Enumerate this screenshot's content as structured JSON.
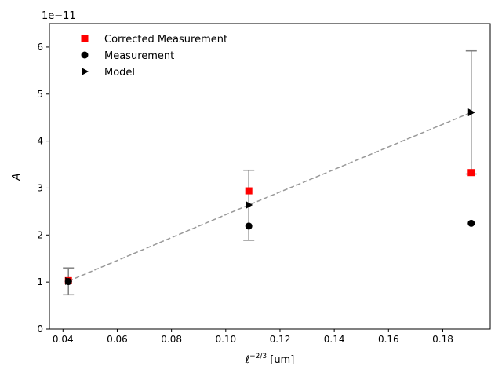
{
  "chart_data": {
    "type": "scatter",
    "title": "",
    "xlabel_main": "ℓ",
    "xlabel_sup": "−2/3",
    "xlabel_unit": " [um]",
    "ylabel": "A",
    "offset_text": "1e−11",
    "xlim": [
      0.035,
      0.1975
    ],
    "ylim": [
      0,
      6.5e-11
    ],
    "x_ticks": [
      0.04,
      0.06,
      0.08,
      0.1,
      0.12,
      0.14,
      0.16,
      0.18
    ],
    "x_tick_labels": [
      "0.04",
      "0.06",
      "0.08",
      "0.10",
      "0.12",
      "0.14",
      "0.16",
      "0.18"
    ],
    "y_ticks": [
      0,
      1e-11,
      2e-11,
      3e-11,
      4e-11,
      5e-11,
      6e-11
    ],
    "y_tick_labels": [
      "0",
      "1",
      "2",
      "3",
      "4",
      "5",
      "6"
    ],
    "grid": false,
    "legend_position": "top-left",
    "series": [
      {
        "name": "Corrected Measurement",
        "marker": "square",
        "color": "#ff0000",
        "x": [
          0.042,
          0.1085,
          0.1905
        ],
        "y": [
          1.03e-11,
          2.94e-11,
          3.33e-11
        ]
      },
      {
        "name": "Measurement",
        "marker": "circle",
        "color": "#000000",
        "x": [
          0.042,
          0.1085,
          0.1905
        ],
        "y": [
          1.01e-11,
          2.19e-11,
          2.25e-11
        ]
      },
      {
        "name": "Model",
        "marker": "triangle-right",
        "color": "#000000",
        "x": [
          0.042,
          0.1085,
          0.1905
        ],
        "y": [
          1.02e-11,
          2.64e-11,
          4.61e-11
        ]
      }
    ],
    "error_bars": {
      "color": "#808080",
      "x": [
        0.042,
        0.1085,
        0.1905
      ],
      "y": [
        1.02e-11,
        2.64e-11,
        4.61e-11
      ],
      "lower": [
        7.3e-12,
        1.89e-11,
        3.3e-11
      ],
      "upper": [
        1.3e-11,
        3.38e-11,
        5.92e-11
      ]
    },
    "fit_line": {
      "style": "dashed",
      "color": "#999999",
      "x": [
        0.042,
        0.1085,
        0.1905
      ],
      "y": [
        1.02e-11,
        2.64e-11,
        4.61e-11
      ]
    }
  }
}
